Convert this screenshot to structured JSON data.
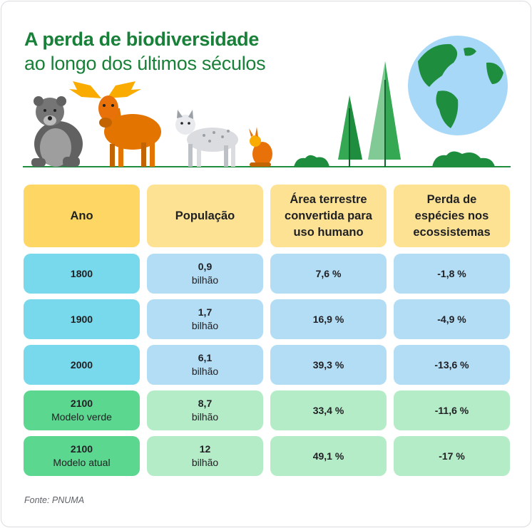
{
  "title": {
    "line1": "A perda de biodiversidade",
    "line2": "ao longo dos últimos séculos"
  },
  "illustration": {
    "icons": [
      "bear-icon",
      "moose-icon",
      "lynx-icon",
      "hare-icon",
      "tree-icon",
      "globe-icon",
      "bush-icon"
    ],
    "colors": {
      "bear": "#757575",
      "moose": "#e37400",
      "lynx": "#dadce0",
      "hare": "#e8710a",
      "trees": "#34a853",
      "ocean": "#a8d8f8",
      "land": "#1e8e3e"
    }
  },
  "table": {
    "headers": {
      "year": "Ano",
      "population": "População",
      "land_line1": "Área terrestre",
      "land_line2": "convertida para",
      "land_line3": "uso humano",
      "loss_line1": "Perda de",
      "loss_line2": "espécies nos",
      "loss_line3": "ecossistemas"
    },
    "rows": [
      {
        "year": "1800",
        "model": "",
        "pop_value": "0,9",
        "pop_unit": "bilhão",
        "land": "7,6 %",
        "loss": "-1,8 %"
      },
      {
        "year": "1900",
        "model": "",
        "pop_value": "1,7",
        "pop_unit": "bilhão",
        "land": "16,9 %",
        "loss": "-4,9 %"
      },
      {
        "year": "2000",
        "model": "",
        "pop_value": "6,1",
        "pop_unit": "bilhão",
        "land": "39,3 %",
        "loss": "-13,6 %"
      },
      {
        "year": "2100",
        "model": "Modelo verde",
        "pop_value": "8,7",
        "pop_unit": "bilhão",
        "land": "33,4 %",
        "loss": "-11,6 %"
      },
      {
        "year": "2100",
        "model": "Modelo atual",
        "pop_value": "12",
        "pop_unit": "bilhão",
        "land": "49,1 %",
        "loss": "-17 %"
      }
    ],
    "colors": {
      "header_year": "#fdd663",
      "header": "#fde293",
      "hist_year": "#78d9ec",
      "hist": "#b3dcf5",
      "future_year": "#5bd78f",
      "future": "#b5ecc8"
    }
  },
  "source": "Fonte: PNUMA"
}
